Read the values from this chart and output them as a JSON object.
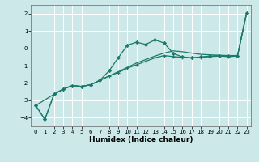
{
  "xlabel": "Humidex (Indice chaleur)",
  "bg_color": "#cce8e8",
  "grid_color": "#ffffff",
  "line_color": "#1a7a6a",
  "ylim": [
    -4.5,
    2.5
  ],
  "xlim": [
    -0.5,
    23.5
  ],
  "yticks": [
    -4,
    -3,
    -2,
    -1,
    0,
    1,
    2
  ],
  "xticks": [
    0,
    1,
    2,
    3,
    4,
    5,
    6,
    7,
    8,
    9,
    10,
    11,
    12,
    13,
    14,
    15,
    16,
    17,
    18,
    19,
    20,
    21,
    22,
    23
  ],
  "series1_x": [
    0,
    1,
    2,
    3,
    4,
    5,
    6,
    7,
    8,
    9,
    10,
    11,
    12,
    13,
    14,
    15,
    16,
    17,
    18,
    19,
    20,
    21,
    22,
    23
  ],
  "series1_y": [
    -3.3,
    -4.1,
    -2.65,
    -2.35,
    -2.15,
    -2.2,
    -2.1,
    -1.85,
    -1.3,
    -0.55,
    0.18,
    0.35,
    0.22,
    0.48,
    0.3,
    -0.3,
    -0.5,
    -0.55,
    -0.5,
    -0.45,
    -0.42,
    -0.45,
    -0.42,
    2.05
  ],
  "series2_x": [
    0,
    1,
    2,
    3,
    4,
    5,
    6,
    7,
    8,
    9,
    10,
    11,
    12,
    13,
    14,
    15,
    16,
    17,
    18,
    19,
    20,
    21,
    22,
    23
  ],
  "series2_y": [
    -3.3,
    -4.1,
    -2.65,
    -2.35,
    -2.15,
    -2.2,
    -2.1,
    -1.85,
    -1.6,
    -1.4,
    -1.15,
    -0.95,
    -0.75,
    -0.55,
    -0.42,
    -0.48,
    -0.52,
    -0.55,
    -0.52,
    -0.48,
    -0.45,
    -0.48,
    -0.45,
    2.05
  ],
  "series3_x": [
    0,
    2,
    3,
    4,
    5,
    6,
    7,
    8,
    9,
    10,
    11,
    12,
    13,
    14,
    15,
    16,
    17,
    18,
    19,
    20,
    21,
    22,
    23
  ],
  "series3_y": [
    -3.3,
    -2.65,
    -2.35,
    -2.15,
    -2.2,
    -2.1,
    -1.85,
    -1.6,
    -1.35,
    -1.1,
    -0.85,
    -0.65,
    -0.45,
    -0.28,
    -0.15,
    -0.2,
    -0.28,
    -0.35,
    -0.38,
    -0.4,
    -0.42,
    -0.42,
    2.05
  ]
}
